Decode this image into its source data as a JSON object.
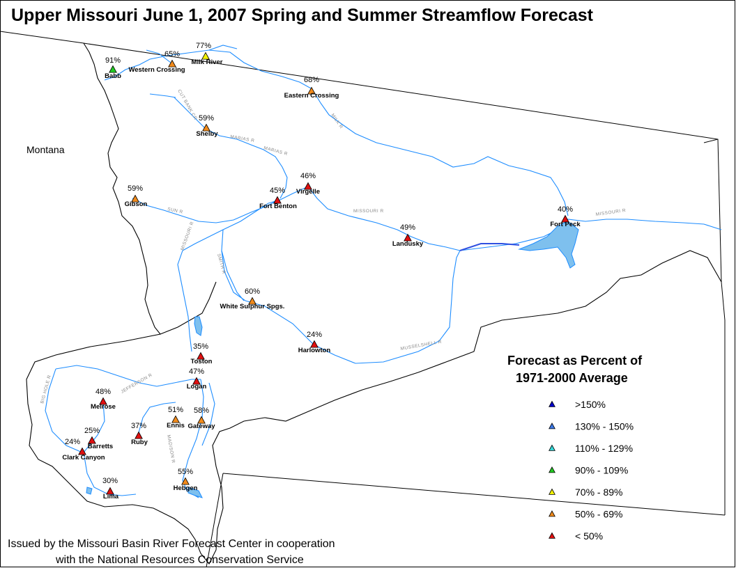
{
  "title": "Upper Missouri  June 1, 2007 Spring and Summer Streamflow Forecast",
  "state_label": "Montana",
  "legend": {
    "title_line1": "Forecast as Percent of",
    "title_line2": "1971-2000 Average",
    "items": [
      {
        "label": ">150%",
        "color": "#0000cc"
      },
      {
        "label": "130% - 150%",
        "color": "#3a78e8"
      },
      {
        "label": "110% - 129%",
        "color": "#35d6d6"
      },
      {
        "label": "90% - 109%",
        "color": "#22cc22"
      },
      {
        "label": "70% - 89%",
        "color": "#f2f200"
      },
      {
        "label": "50% - 69%",
        "color": "#f08a1c"
      },
      {
        "label": "< 50%",
        "color": "#e01010"
      }
    ]
  },
  "footer": {
    "line1": "Issued by the Missouri Basin River Forecast Center in cooperation",
    "line2": "with the National Resources Conservation Service"
  },
  "river_labels": [
    "MILK R",
    "MARIAS R",
    "MISSOURI R",
    "MISSOURI R",
    "MISSOURI R",
    "SUN R",
    "SMITH R",
    "MUSSELSHELL R",
    "JEFFERSON R",
    "BIG HOLE R",
    "MADISON R",
    "CUT BANK CR"
  ],
  "sites": [
    {
      "name": "Babb",
      "percent": "91%",
      "color": "#22cc22"
    },
    {
      "name": "Western Crossing",
      "percent": "65%",
      "color": "#f08a1c"
    },
    {
      "name": "Milk River",
      "percent": "77%",
      "color": "#f2f200"
    },
    {
      "name": "Eastern Crossing",
      "percent": "68%",
      "color": "#f08a1c"
    },
    {
      "name": "Shelby",
      "percent": "59%",
      "color": "#f08a1c"
    },
    {
      "name": "Virgelle",
      "percent": "46%",
      "color": "#e01010"
    },
    {
      "name": "Fort Benton",
      "percent": "45%",
      "color": "#e01010"
    },
    {
      "name": "Gibson",
      "percent": "59%",
      "color": "#f08a1c"
    },
    {
      "name": "Landusky",
      "percent": "49%",
      "color": "#e01010"
    },
    {
      "name": "Fort Peck",
      "percent": "40%",
      "color": "#e01010"
    },
    {
      "name": "White Sulphur Spgs.",
      "percent": "60%",
      "color": "#f08a1c"
    },
    {
      "name": "Harlowton",
      "percent": "24%",
      "color": "#e01010"
    },
    {
      "name": "Toston",
      "percent": "35%",
      "color": "#e01010"
    },
    {
      "name": "Logan",
      "percent": "47%",
      "color": "#e01010"
    },
    {
      "name": "Melrose",
      "percent": "48%",
      "color": "#e01010"
    },
    {
      "name": "Ennis",
      "percent": "51%",
      "color": "#f08a1c"
    },
    {
      "name": "Gateway",
      "percent": "58%",
      "color": "#f08a1c"
    },
    {
      "name": "Ruby",
      "percent": "37%",
      "color": "#e01010"
    },
    {
      "name": "Barretts",
      "percent": "25%",
      "color": "#e01010"
    },
    {
      "name": "Clark Canyon",
      "percent": "24%",
      "color": "#e01010"
    },
    {
      "name": "Hebgen",
      "percent": "55%",
      "color": "#f08a1c"
    },
    {
      "name": "Lima",
      "percent": "30%",
      "color": "#e01010"
    }
  ]
}
